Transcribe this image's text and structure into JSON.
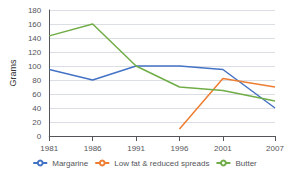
{
  "chart_data": {
    "type": "line",
    "x": [
      1981,
      1986,
      1991,
      1996,
      2001,
      2007
    ],
    "series": [
      {
        "name": "Margarine",
        "color": "#4472C4",
        "values": [
          95,
          80,
          100,
          100,
          95,
          40
        ]
      },
      {
        "name": "Low fat & reduced spreads",
        "color": "#ED7D31",
        "values": [
          null,
          null,
          null,
          10,
          82,
          70
        ]
      },
      {
        "name": "Butter",
        "color": "#70AD47",
        "values": [
          143,
          160,
          100,
          70,
          65,
          50
        ]
      }
    ],
    "ylabel": "Grams",
    "xlim": [
      1981,
      2007
    ],
    "xticks": [
      1981,
      1986,
      1991,
      1996,
      2001,
      2007
    ],
    "ylim": [
      0,
      180
    ],
    "yticks": [
      0,
      20,
      40,
      60,
      80,
      100,
      120,
      140,
      160,
      180
    ],
    "grid": true,
    "legend": "bottom"
  }
}
